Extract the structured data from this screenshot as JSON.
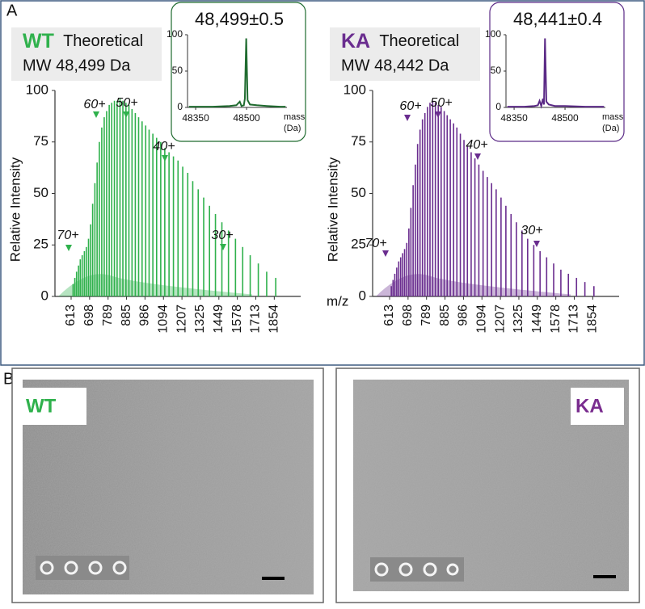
{
  "panels": {
    "a": "A",
    "b": "B"
  },
  "chart_data": [
    {
      "type": "bar",
      "sample": "WT",
      "header": "Theoretical",
      "mw": "MW 48,499 Da",
      "ylabel": "Relative Intensity",
      "xlabel": "m/z",
      "color": "#2fb14c",
      "x": [
        622,
        630,
        638,
        647,
        655,
        664,
        674,
        683,
        693,
        703,
        713,
        724,
        735,
        746,
        758,
        770,
        782,
        795,
        808,
        822,
        836,
        851,
        866,
        882,
        898,
        915,
        933,
        951,
        970,
        990,
        1010,
        1032,
        1054,
        1078,
        1102,
        1128,
        1155,
        1183,
        1212,
        1244,
        1276,
        1311,
        1347,
        1386,
        1426,
        1470,
        1516,
        1565,
        1617,
        1672,
        1732,
        1796,
        1865
      ],
      "values": [
        6,
        9,
        12,
        15,
        18,
        20,
        22,
        24,
        28,
        35,
        45,
        55,
        65,
        75,
        82,
        87,
        90,
        93,
        94,
        95,
        95,
        96,
        95,
        94,
        93,
        91,
        89,
        87,
        85,
        83,
        81,
        79,
        77,
        75,
        72,
        70,
        68,
        66,
        63,
        60,
        56,
        52,
        48,
        44,
        40,
        36,
        32,
        28,
        24,
        20,
        16,
        12,
        9
      ],
      "xticks": [
        613,
        698,
        789,
        885,
        986,
        1094,
        1207,
        1325,
        1449,
        1578,
        1713,
        1854
      ],
      "ylim": [
        0,
        100
      ],
      "yticks": [
        0,
        25,
        50,
        75,
        100
      ],
      "annotations": [
        "70+",
        "60+",
        "50+",
        "40+",
        "30+"
      ]
    },
    {
      "type": "bar",
      "sample": "KA",
      "header": "Theoretical",
      "mw": "MW 48,442 Da",
      "ylabel": "Relative Intensity",
      "color": "#6a2d8f",
      "x": [
        621,
        629,
        637,
        646,
        655,
        664,
        673,
        682,
        692,
        702,
        712,
        723,
        734,
        745,
        757,
        769,
        781,
        794,
        807,
        821,
        835,
        850,
        865,
        881,
        897,
        914,
        932,
        950,
        969,
        989,
        1009,
        1031,
        1053,
        1076,
        1101,
        1127,
        1153,
        1181,
        1211,
        1242,
        1275,
        1309,
        1346,
        1384,
        1425,
        1468,
        1514,
        1563,
        1615,
        1670,
        1730,
        1794,
        1863
      ],
      "values": [
        5,
        8,
        11,
        14,
        17,
        19,
        21,
        23,
        26,
        33,
        43,
        54,
        64,
        74,
        81,
        86,
        89,
        92,
        94,
        95,
        94,
        93,
        92,
        90,
        88,
        86,
        84,
        82,
        79,
        76,
        73,
        70,
        67,
        64,
        61,
        58,
        55,
        52,
        48,
        44,
        40,
        36,
        32,
        28,
        25,
        22,
        19,
        16,
        13,
        11,
        9,
        7,
        5
      ],
      "xticks": [
        613,
        698,
        789,
        885,
        986,
        1094,
        1207,
        1325,
        1449,
        1578,
        1713,
        1854
      ],
      "ylim": [
        0,
        100
      ],
      "yticks": [
        0,
        25,
        50,
        75,
        100
      ],
      "annotations": [
        "70+",
        "60+",
        "50+",
        "40+",
        "30+"
      ]
    },
    {
      "type": "line",
      "title": "48,499±0.5",
      "color": "#1f6b2f",
      "xlabel": [
        "mass",
        "(Da)"
      ],
      "x": [
        48330,
        48400,
        48450,
        48470,
        48480,
        48485,
        48492,
        48495,
        48499,
        48503,
        48510,
        48530,
        48560,
        48600,
        48615
      ],
      "values": [
        1,
        1,
        2,
        3,
        8,
        2,
        3,
        12,
        95,
        10,
        4,
        3,
        2,
        1,
        1
      ],
      "xlim": [
        48326,
        48619
      ],
      "xticks": [
        48350,
        48500
      ],
      "ylim": [
        0,
        100
      ],
      "yticks": [
        0,
        50,
        100
      ]
    },
    {
      "type": "line",
      "title": "48,441±0.4",
      "color": "#5b2a86",
      "xlabel": [
        "mass",
        "(Da)"
      ],
      "x": [
        48330,
        48380,
        48410,
        48420,
        48425,
        48430,
        48435,
        48438,
        48441,
        48445,
        48452,
        48470,
        48500,
        48560,
        48615
      ],
      "values": [
        1,
        1,
        2,
        3,
        9,
        2,
        12,
        4,
        95,
        8,
        4,
        2,
        2,
        1,
        1
      ],
      "xlim": [
        48326,
        48619
      ],
      "xticks": [
        48350,
        48500
      ],
      "ylim": [
        0,
        100
      ],
      "yticks": [
        0,
        50,
        100
      ]
    }
  ],
  "micrographs": [
    {
      "label": "WT"
    },
    {
      "label": "KA"
    }
  ]
}
